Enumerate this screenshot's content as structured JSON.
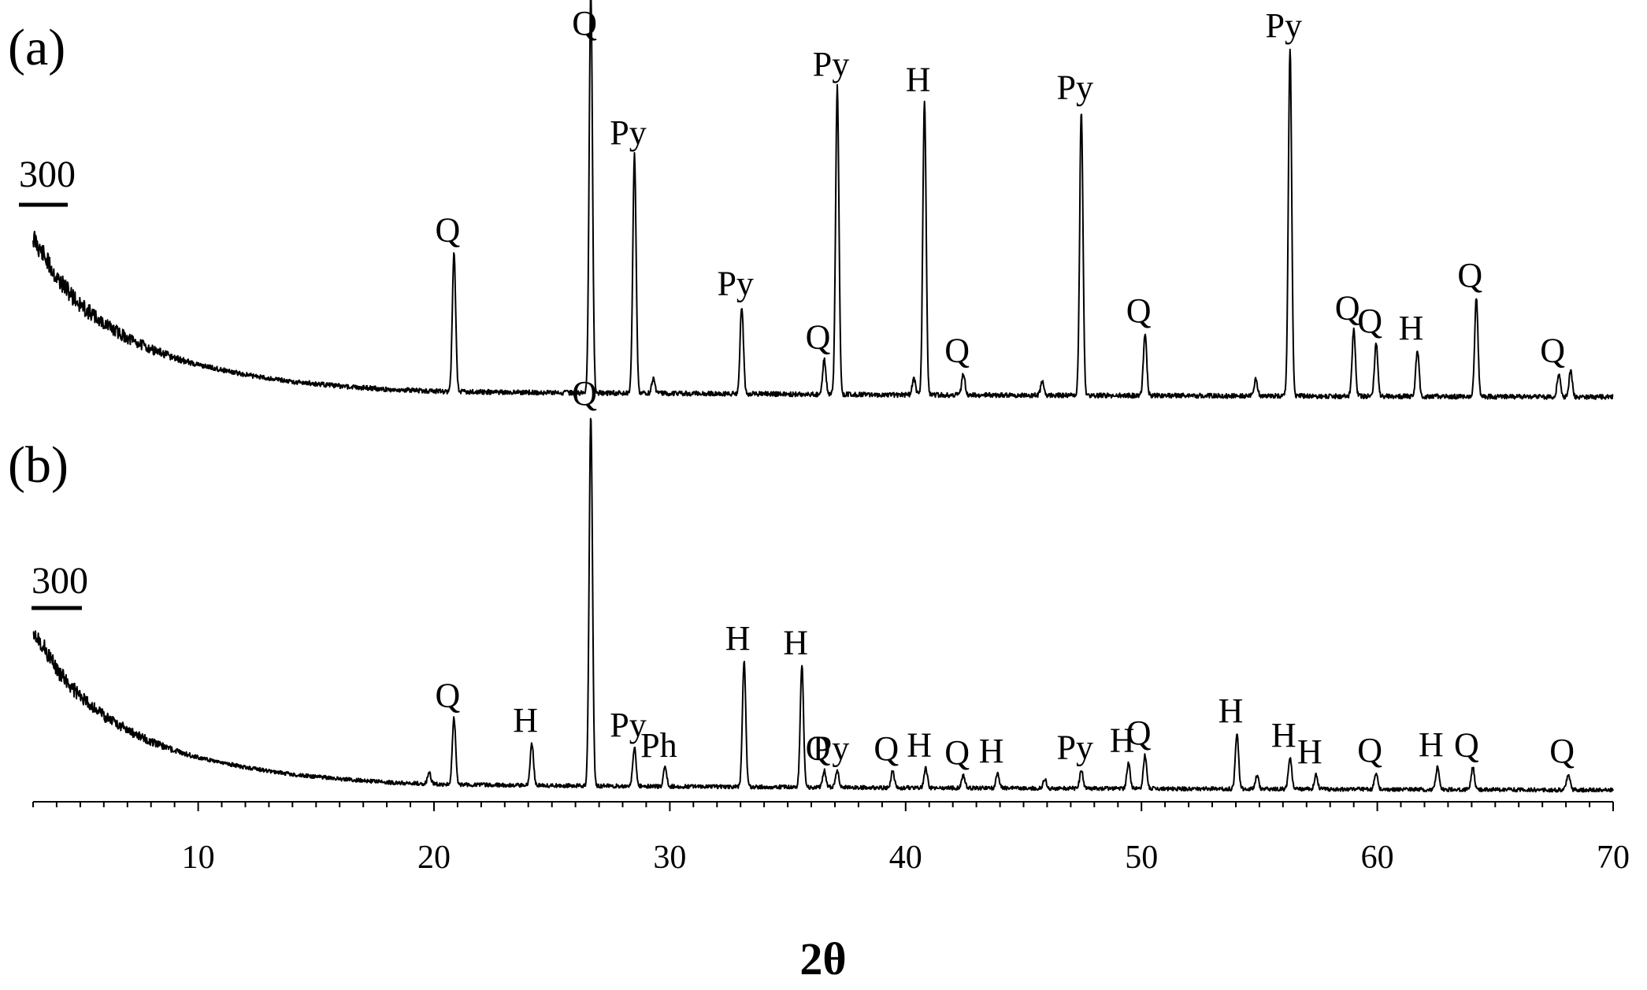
{
  "chart_data": {
    "type": "line",
    "xlabel": "2θ",
    "xlim": [
      3,
      70
    ],
    "xticks": [
      10,
      20,
      30,
      40,
      50,
      60,
      70
    ],
    "xtick_labels": [
      "10",
      "20",
      "30",
      "40",
      "50",
      "60",
      "70"
    ],
    "grid": false,
    "legend": "none",
    "panels": [
      {
        "label": "(a)",
        "scale_bar_label": "300",
        "baseline": [
          [
            3,
            440
          ],
          [
            4,
            330
          ],
          [
            5,
            255
          ],
          [
            6,
            205
          ],
          [
            7,
            165
          ],
          [
            8,
            135
          ],
          [
            9,
            110
          ],
          [
            10,
            92
          ],
          [
            12,
            65
          ],
          [
            14,
            46
          ],
          [
            16,
            34
          ],
          [
            18,
            25
          ],
          [
            20,
            20
          ],
          [
            22,
            18
          ],
          [
            25,
            16
          ],
          [
            30,
            14
          ],
          [
            35,
            12
          ],
          [
            40,
            10
          ],
          [
            45,
            9
          ],
          [
            50,
            8
          ],
          [
            55,
            7
          ],
          [
            60,
            6
          ],
          [
            65,
            5
          ],
          [
            70,
            4
          ]
        ],
        "peaks": [
          {
            "pos": 20.85,
            "height": 380,
            "label": "Q"
          },
          {
            "pos": 26.65,
            "height": 1100,
            "label": "Q"
          },
          {
            "pos": 28.5,
            "height": 650,
            "label": "Py"
          },
          {
            "pos": 33.05,
            "height": 240,
            "label": "Py"
          },
          {
            "pos": 36.55,
            "height": 95,
            "label": "Q"
          },
          {
            "pos": 37.1,
            "height": 840,
            "label": "Py"
          },
          {
            "pos": 40.8,
            "height": 800,
            "label": "H"
          },
          {
            "pos": 42.45,
            "height": 60,
            "label": "Q"
          },
          {
            "pos": 47.45,
            "height": 780,
            "label": "Py"
          },
          {
            "pos": 50.15,
            "height": 170,
            "label": "Q"
          },
          {
            "pos": 56.3,
            "height": 950,
            "label": "Py"
          },
          {
            "pos": 59.0,
            "height": 180,
            "label": "Q"
          },
          {
            "pos": 59.95,
            "height": 145,
            "label": "Q"
          },
          {
            "pos": 61.7,
            "height": 125,
            "label": "H"
          },
          {
            "pos": 64.2,
            "height": 270,
            "label": "Q"
          },
          {
            "pos": 67.7,
            "height": 65,
            "label": "Q"
          }
        ],
        "unlabeled_peaks": [
          {
            "pos": 29.3,
            "height": 40
          },
          {
            "pos": 40.35,
            "height": 45
          },
          {
            "pos": 45.8,
            "height": 40
          },
          {
            "pos": 54.85,
            "height": 45
          },
          {
            "pos": 68.2,
            "height": 70
          }
        ]
      },
      {
        "label": "(b)",
        "scale_bar_label": "300",
        "baseline": [
          [
            3,
            440
          ],
          [
            4,
            330
          ],
          [
            5,
            255
          ],
          [
            6,
            205
          ],
          [
            7,
            165
          ],
          [
            8,
            135
          ],
          [
            9,
            110
          ],
          [
            10,
            92
          ],
          [
            12,
            65
          ],
          [
            14,
            46
          ],
          [
            16,
            34
          ],
          [
            18,
            25
          ],
          [
            20,
            20
          ],
          [
            22,
            18
          ],
          [
            25,
            16
          ],
          [
            30,
            14
          ],
          [
            35,
            12
          ],
          [
            40,
            10
          ],
          [
            45,
            9
          ],
          [
            50,
            8
          ],
          [
            55,
            7
          ],
          [
            60,
            6
          ],
          [
            65,
            5
          ],
          [
            70,
            4
          ]
        ],
        "peaks": [
          {
            "pos": 20.85,
            "height": 180,
            "label": "Q"
          },
          {
            "pos": 24.15,
            "height": 115,
            "label": "H"
          },
          {
            "pos": 26.65,
            "height": 1000,
            "label": "Q"
          },
          {
            "pos": 28.5,
            "height": 105,
            "label": "Py"
          },
          {
            "pos": 29.8,
            "height": 50,
            "label": "Ph"
          },
          {
            "pos": 33.15,
            "height": 340,
            "label": "H"
          },
          {
            "pos": 35.6,
            "height": 330,
            "label": "H"
          },
          {
            "pos": 36.55,
            "height": 45,
            "label": "Q"
          },
          {
            "pos": 37.1,
            "height": 45,
            "label": "Py"
          },
          {
            "pos": 39.45,
            "height": 45,
            "label": "Q"
          },
          {
            "pos": 40.85,
            "height": 55,
            "label": "H"
          },
          {
            "pos": 42.45,
            "height": 35,
            "label": "Q"
          },
          {
            "pos": 43.9,
            "height": 40,
            "label": "H"
          },
          {
            "pos": 47.45,
            "height": 50,
            "label": "Py"
          },
          {
            "pos": 49.45,
            "height": 70,
            "label": "H"
          },
          {
            "pos": 50.15,
            "height": 90,
            "label": "Q"
          },
          {
            "pos": 54.05,
            "height": 150,
            "label": "H"
          },
          {
            "pos": 56.3,
            "height": 85,
            "label": "H"
          },
          {
            "pos": 57.4,
            "height": 40,
            "label": "H"
          },
          {
            "pos": 59.95,
            "height": 45,
            "label": "Q"
          },
          {
            "pos": 62.55,
            "height": 60,
            "label": "H"
          },
          {
            "pos": 64.05,
            "height": 60,
            "label": "Q"
          },
          {
            "pos": 68.1,
            "height": 45,
            "label": "Q"
          }
        ],
        "unlabeled_peaks": [
          {
            "pos": 19.8,
            "height": 30
          },
          {
            "pos": 54.9,
            "height": 35
          },
          {
            "pos": 45.9,
            "height": 25
          }
        ]
      }
    ]
  }
}
